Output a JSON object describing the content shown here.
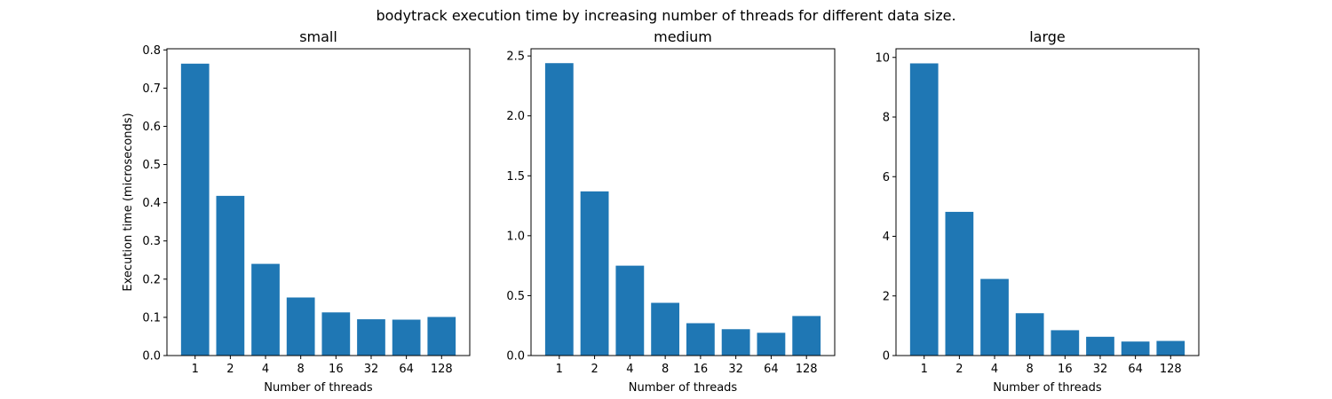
{
  "figure_title": "bodytrack execution time by increasing number of threads for different data size.",
  "chart_data": [
    {
      "type": "bar",
      "title": "small",
      "xlabel": "Number of threads",
      "ylabel": "Execution time (microseconds)",
      "categories": [
        "1",
        "2",
        "4",
        "8",
        "16",
        "32",
        "64",
        "128"
      ],
      "values": [
        0.764,
        0.418,
        0.24,
        0.152,
        0.113,
        0.095,
        0.094,
        0.101
      ],
      "ylim": [
        0,
        0.803
      ],
      "yticks": [
        0.0,
        0.1,
        0.2,
        0.3,
        0.4,
        0.5,
        0.6,
        0.7,
        0.8
      ],
      "ytick_labels": [
        "0.0",
        "0.1",
        "0.2",
        "0.3",
        "0.4",
        "0.5",
        "0.6",
        "0.7",
        "0.8"
      ],
      "color": "#1f77b4",
      "grid": false
    },
    {
      "type": "bar",
      "title": "medium",
      "xlabel": "Number of threads",
      "ylabel": "",
      "categories": [
        "1",
        "2",
        "4",
        "8",
        "16",
        "32",
        "64",
        "128"
      ],
      "values": [
        2.44,
        1.37,
        0.75,
        0.44,
        0.27,
        0.22,
        0.19,
        0.33
      ],
      "ylim": [
        0,
        2.56
      ],
      "yticks": [
        0.0,
        0.5,
        1.0,
        1.5,
        2.0,
        2.5
      ],
      "ytick_labels": [
        "0.0",
        "0.5",
        "1.0",
        "1.5",
        "2.0",
        "2.5"
      ],
      "color": "#1f77b4",
      "grid": false
    },
    {
      "type": "bar",
      "title": "large",
      "xlabel": "Number of threads",
      "ylabel": "",
      "categories": [
        "1",
        "2",
        "4",
        "8",
        "16",
        "32",
        "64",
        "128"
      ],
      "values": [
        9.8,
        4.82,
        2.57,
        1.42,
        0.85,
        0.63,
        0.47,
        0.49
      ],
      "ylim": [
        0,
        10.29
      ],
      "yticks": [
        0,
        2,
        4,
        6,
        8,
        10
      ],
      "ytick_labels": [
        "0",
        "2",
        "4",
        "6",
        "8",
        "10"
      ],
      "color": "#1f77b4",
      "grid": false
    }
  ]
}
